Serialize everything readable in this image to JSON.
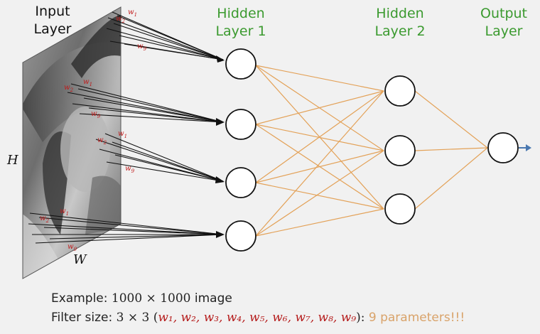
{
  "layers": {
    "input": {
      "line1": "Input",
      "line2": "Layer"
    },
    "hidden1": {
      "line1": "Hidden",
      "line2": "Layer 1"
    },
    "hidden2": {
      "line1": "Hidden",
      "line2": "Layer 2"
    },
    "output": {
      "line1": "Output",
      "line2": "Layer"
    }
  },
  "image_axes": {
    "height": "H",
    "width": "W"
  },
  "weight_labels": {
    "w1": "w",
    "w1_sub": "1",
    "w2": "w",
    "w2_sub": "2",
    "w9": "w",
    "w9_sub": "9"
  },
  "caption": {
    "line1_prefix": "Example: ",
    "line1_math": "1000 × 1000",
    "line1_suffix": " image",
    "line2_prefix": "Filter size: ",
    "line2_math": "3 × 3 (",
    "line2_weights": "w₁, w₂, w₃, w₄, w₅, w₆, w₇, w₈, w₉",
    "line2_close": "): ",
    "line2_params": "9 parameters!!!"
  },
  "colors": {
    "layer_title": "#3b9a2f",
    "connection": "#e3a157",
    "weight_label": "#c01818",
    "output_arrow": "#4a78b0"
  }
}
